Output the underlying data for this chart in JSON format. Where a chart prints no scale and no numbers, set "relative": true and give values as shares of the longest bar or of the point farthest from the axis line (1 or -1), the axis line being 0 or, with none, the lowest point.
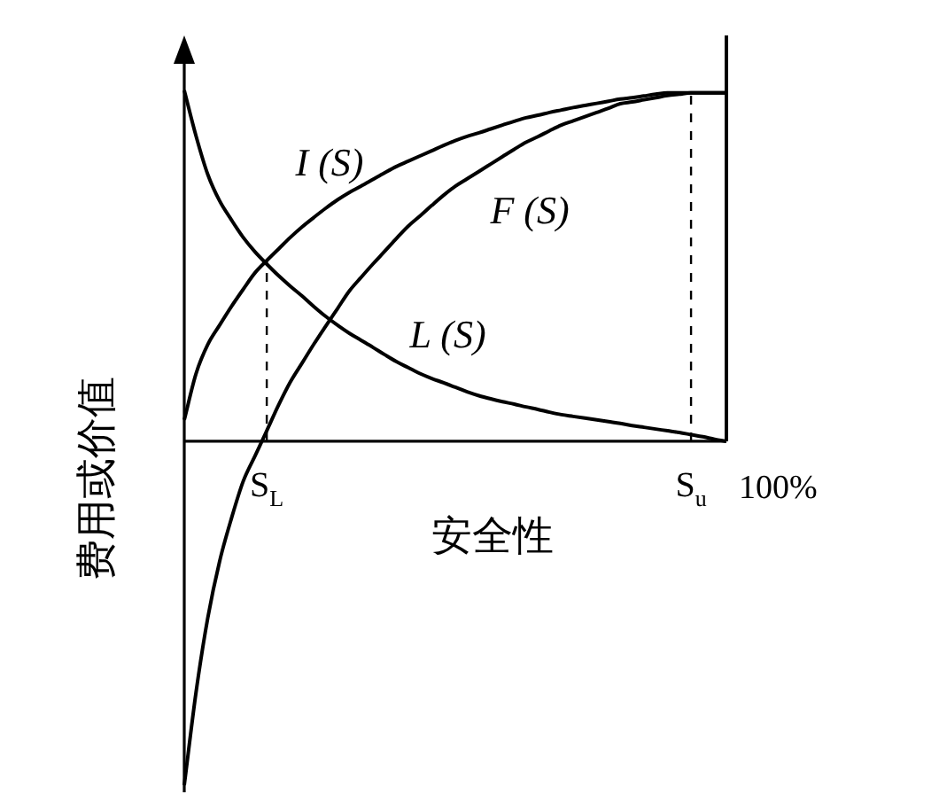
{
  "chart_data": {
    "type": "line",
    "relative": true,
    "xlabel": "安全性",
    "ylabel": "费用或价值",
    "marker": "none",
    "line_style": "solid",
    "categories": [
      null,
      null,
      null,
      null,
      null,
      null,
      null,
      "S$_{L}$",
      null,
      null,
      null,
      null,
      null,
      null,
      null,
      null,
      null,
      null,
      null,
      null,
      null,
      null,
      null,
      null,
      null,
      null,
      null,
      null,
      null,
      null,
      null,
      null,
      null,
      null,
      null,
      null,
      null,
      null,
      null,
      null,
      null,
      null,
      null,
      "S$_{u}$",
      null,
      null,
      null
    ],
    "series": [
      {
        "name": "I (S)",
        "color": "#000000",
        "values": [
          0.061,
          0.193,
          0.276,
          0.331,
          0.384,
          0.433,
          0.48,
          0.515,
          0.548,
          0.581,
          0.611,
          0.638,
          0.664,
          0.688,
          0.709,
          0.727,
          0.746,
          0.765,
          0.783,
          0.798,
          0.813,
          0.828,
          0.843,
          0.857,
          0.869,
          0.879,
          0.89,
          0.901,
          0.912,
          0.922,
          0.929,
          0.937,
          0.944,
          0.951,
          0.957,
          0.963,
          0.969,
          0.975,
          0.979,
          0.984,
          0.989,
          0.993,
          0.993,
          0.993,
          0.993,
          0.993,
          0.993
        ]
      },
      {
        "name": "F (S)",
        "color": "#000000",
        "values": [
          -0.98,
          -0.715,
          -0.502,
          -0.342,
          -0.22,
          -0.114,
          -0.042,
          0.03,
          0.103,
          0.169,
          0.223,
          0.277,
          0.328,
          0.378,
          0.428,
          0.467,
          0.505,
          0.541,
          0.578,
          0.613,
          0.642,
          0.672,
          0.701,
          0.727,
          0.748,
          0.769,
          0.79,
          0.811,
          0.832,
          0.852,
          0.868,
          0.885,
          0.901,
          0.913,
          0.925,
          0.937,
          0.949,
          0.962,
          0.967,
          0.973,
          0.979,
          0.985,
          0.989,
          0.993,
          0.993,
          0.993,
          0.993
        ]
      },
      {
        "name": "L (S)",
        "color": "#000000",
        "values": [
          1,
          0.87,
          0.76,
          0.685,
          0.631,
          0.581,
          0.54,
          0.505,
          0.472,
          0.442,
          0.414,
          0.384,
          0.356,
          0.331,
          0.308,
          0.288,
          0.268,
          0.247,
          0.227,
          0.21,
          0.193,
          0.179,
          0.167,
          0.154,
          0.141,
          0.13,
          0.121,
          0.113,
          0.106,
          0.098,
          0.091,
          0.083,
          0.076,
          0.071,
          0.066,
          0.061,
          0.056,
          0.051,
          0.045,
          0.04,
          0.035,
          0.03,
          0.025,
          0.019,
          0.013,
          0.006,
          0
        ]
      }
    ],
    "ref_lines": [
      {
        "axis": "x",
        "value": "S$_{L}$",
        "line_style": "dashed",
        "color": "#000000"
      },
      {
        "axis": "x",
        "value": "S$_{u}$",
        "line_style": "dashed",
        "color": "#000000"
      }
    ],
    "annotations": [
      "100%"
    ]
  }
}
